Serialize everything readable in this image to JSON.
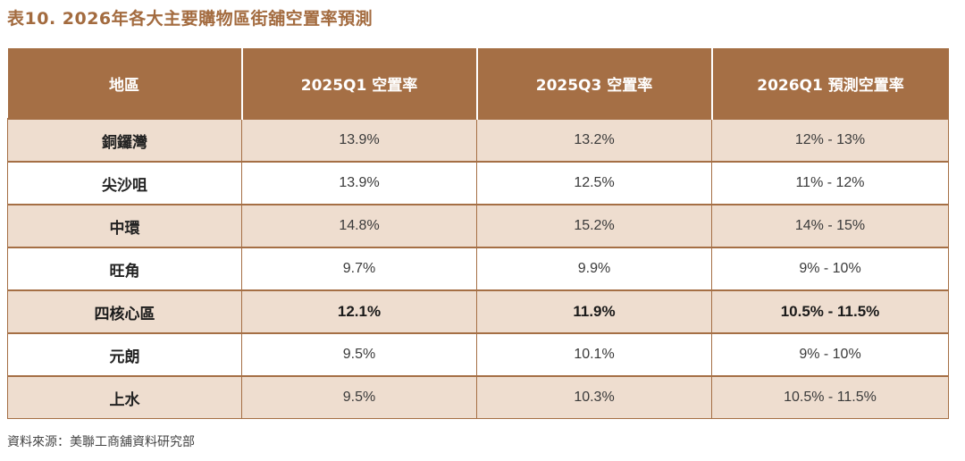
{
  "title": "表10. 2026年各大主要購物區街舖空置率預測",
  "table": {
    "headers": [
      "地區",
      "2025Q1 空置率",
      "2025Q3 空置率",
      "2026Q1 預測空置率"
    ],
    "rows": [
      {
        "region": "銅鑼灣",
        "q1_2025": "13.9%",
        "q3_2025": "13.2%",
        "q1_2026_forecast": "12% - 13%"
      },
      {
        "region": "尖沙咀",
        "q1_2025": "13.9%",
        "q3_2025": "12.5%",
        "q1_2026_forecast": "11% - 12%"
      },
      {
        "region": "中環",
        "q1_2025": "14.8%",
        "q3_2025": "15.2%",
        "q1_2026_forecast": "14% - 15%"
      },
      {
        "region": "旺角",
        "q1_2025": "9.7%",
        "q3_2025": "9.9%",
        "q1_2026_forecast": "9% - 10%"
      },
      {
        "region": "四核心區",
        "q1_2025": "12.1%",
        "q3_2025": "11.9%",
        "q1_2026_forecast": "10.5% - 11.5%"
      },
      {
        "region": "元朗",
        "q1_2025": "9.5%",
        "q3_2025": "10.1%",
        "q1_2026_forecast": "9% - 10%"
      },
      {
        "region": "上水",
        "q1_2025": "9.5%",
        "q3_2025": "10.3%",
        "q1_2026_forecast": "10.5% - 11.5%"
      }
    ]
  },
  "source": "資料來源：美聯工商舖資料研究部",
  "colors": {
    "header_bg": "#A56F45",
    "title_text": "#A36B3F",
    "row_shade": "#EEDDCF",
    "row_plain": "#FFFFFF"
  }
}
